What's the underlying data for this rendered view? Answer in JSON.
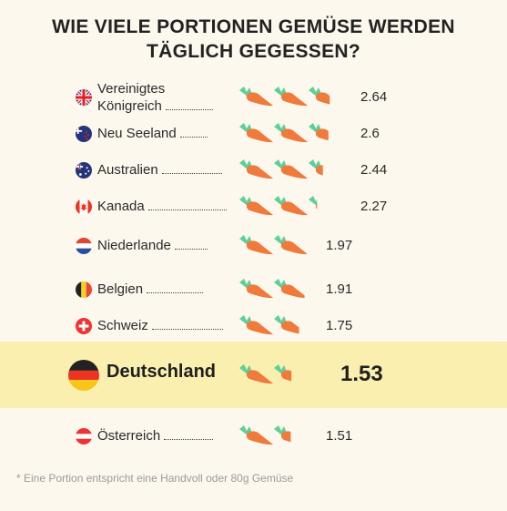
{
  "title_line1": "WIE VIELE PORTIONEN GEMÜSE WERDEN",
  "title_line2": "TÄGLICH GEGESSEN?",
  "footnote": "* Eine Portion entspricht eine Handvoll oder 80g Gemüse",
  "colors": {
    "background": "#fdf8ee",
    "highlight": "#fbefb0",
    "carrot": "#f07a3c",
    "leaf": "#5fcf9a"
  },
  "chart_data": {
    "type": "bar",
    "title": "WIE VIELE PORTIONEN GEMÜSE WERDEN TÄGLICH GEGESSEN?",
    "unit": "carrot",
    "categories": [
      "Vereinigtes Königreich",
      "Neu Seeland",
      "Australien",
      "Kanada",
      "Niederlande",
      "Belgien",
      "Schweiz",
      "Deutschland",
      "Österreich"
    ],
    "values": [
      2.64,
      2.6,
      2.44,
      2.27,
      1.97,
      1.91,
      1.75,
      1.53,
      1.51
    ],
    "value_labels": [
      "2.64",
      "2.6",
      "2.44",
      "2.27",
      "1.97",
      "1.91",
      "1.75",
      "1.53",
      "1.51"
    ],
    "highlight": "Deutschland",
    "flags": [
      "uk",
      "nz",
      "au",
      "ca",
      "nl",
      "be",
      "ch",
      "de",
      "at"
    ]
  }
}
